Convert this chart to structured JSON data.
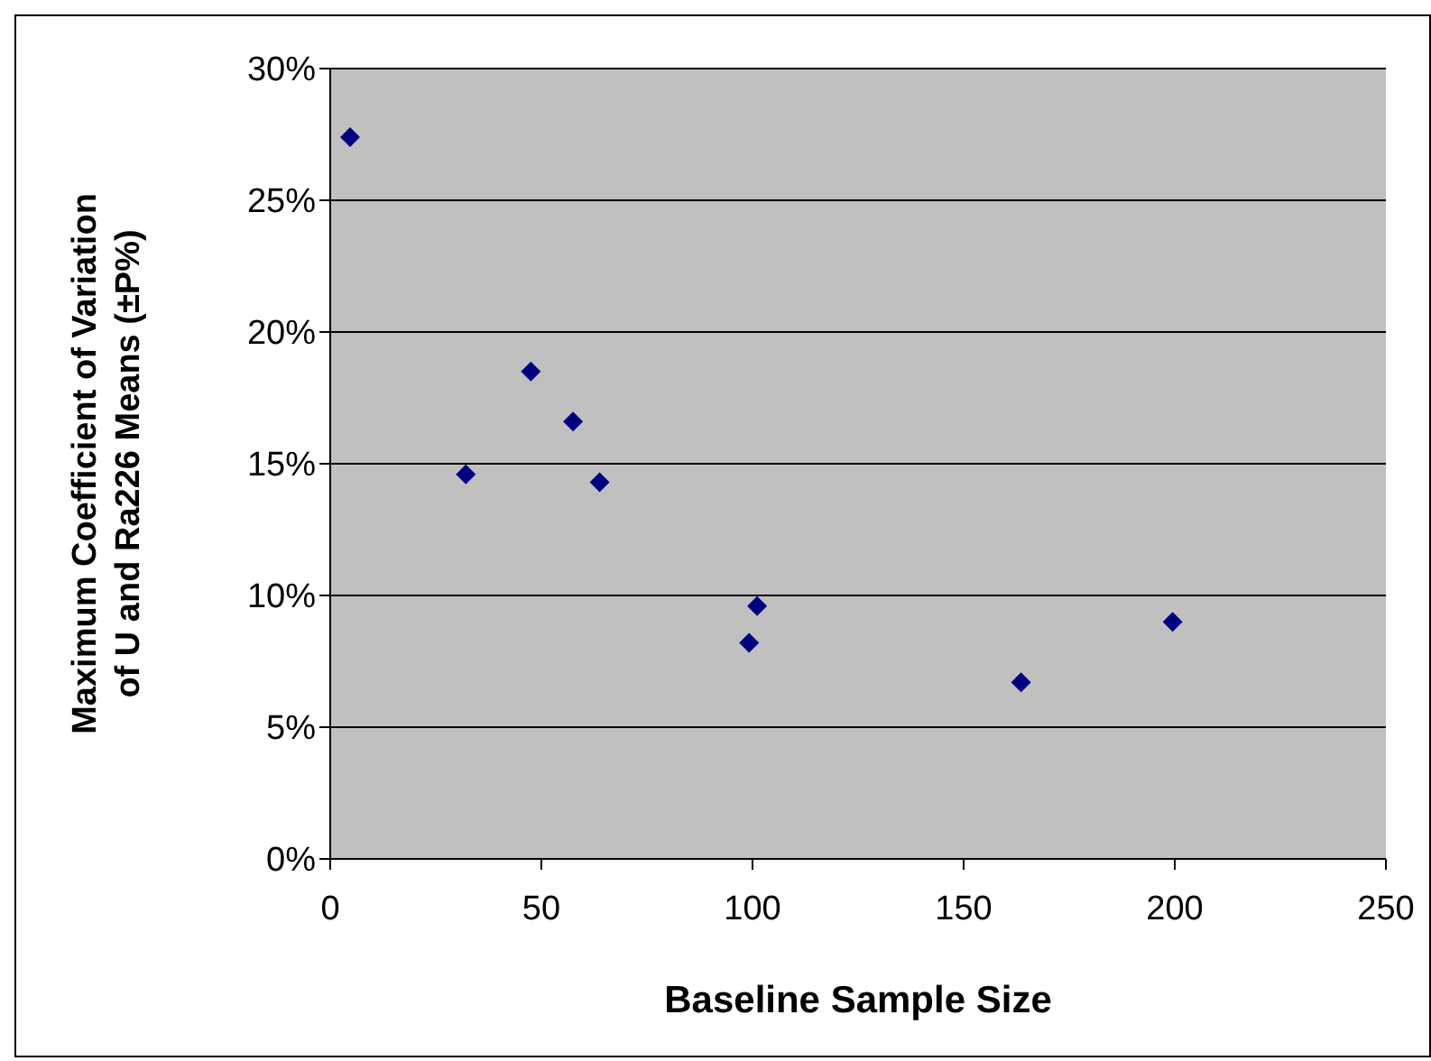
{
  "chart_data": {
    "type": "scatter",
    "xlabel": "Baseline Sample Size",
    "ylabel": "Maximum Coefficient of Variation of U and Ra226 Means (±P%)",
    "x": [
      4.7,
      32.1,
      47.5,
      57.5,
      63.8,
      99.2,
      101.1,
      163.6,
      199.5
    ],
    "series": [
      {
        "color": "#000080",
        "values": [
          27.4,
          14.6,
          18.5,
          16.6,
          14.3,
          8.2,
          9.6,
          6.7,
          9.0
        ]
      }
    ],
    "xlim": [
      0,
      250
    ],
    "xticks": [
      0,
      50,
      100,
      150,
      200,
      250
    ],
    "ylim": [
      0,
      30
    ],
    "yticks": [
      {
        "value": 0,
        "label": "0%"
      },
      {
        "value": 5,
        "label": "5%"
      },
      {
        "value": 10,
        "label": "10%"
      },
      {
        "value": 15,
        "label": "15%"
      },
      {
        "value": 20,
        "label": "20%"
      },
      {
        "value": 25,
        "label": "25%"
      },
      {
        "value": 30,
        "label": "30%"
      }
    ],
    "grid": "y",
    "legend": false,
    "marker": "diamond"
  }
}
